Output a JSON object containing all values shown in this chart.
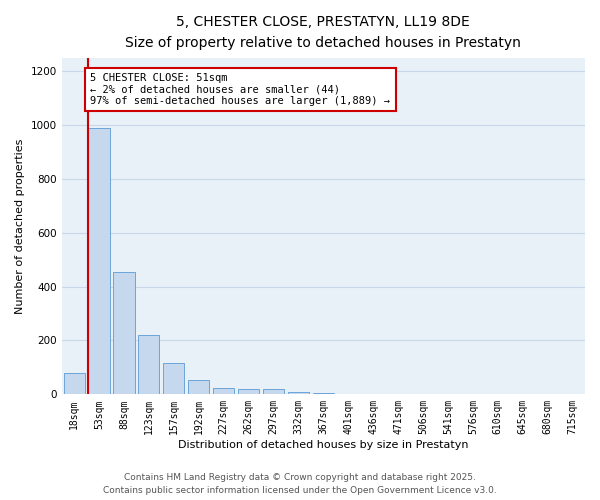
{
  "title_line1": "5, CHESTER CLOSE, PRESTATYN, LL19 8DE",
  "title_line2": "Size of property relative to detached houses in Prestatyn",
  "xlabel": "Distribution of detached houses by size in Prestatyn",
  "ylabel": "Number of detached properties",
  "bar_labels": [
    "18sqm",
    "53sqm",
    "88sqm",
    "123sqm",
    "157sqm",
    "192sqm",
    "227sqm",
    "262sqm",
    "297sqm",
    "332sqm",
    "367sqm",
    "401sqm",
    "436sqm",
    "471sqm",
    "506sqm",
    "541sqm",
    "576sqm",
    "610sqm",
    "645sqm",
    "680sqm",
    "715sqm"
  ],
  "bar_values": [
    80,
    990,
    455,
    220,
    115,
    55,
    22,
    18,
    18,
    8,
    5,
    0,
    0,
    0,
    0,
    0,
    0,
    0,
    0,
    0,
    0
  ],
  "bar_color": "#c5d8ed",
  "bar_edge_color": "#5b9bd5",
  "highlight_line_color": "#cc0000",
  "annotation_text": "5 CHESTER CLOSE: 51sqm\n← 2% of detached houses are smaller (44)\n97% of semi-detached houses are larger (1,889) →",
  "annotation_box_color": "#ffffff",
  "annotation_box_edge_color": "#cc0000",
  "ylim": [
    0,
    1250
  ],
  "yticks": [
    0,
    200,
    400,
    600,
    800,
    1000,
    1200
  ],
  "grid_color": "#c8d8e8",
  "background_color": "#e8f0f8",
  "footer_line1": "Contains HM Land Registry data © Crown copyright and database right 2025.",
  "footer_line2": "Contains public sector information licensed under the Open Government Licence v3.0.",
  "title_fontsize": 10,
  "subtitle_fontsize": 9,
  "axis_label_fontsize": 8,
  "tick_fontsize": 7,
  "annotation_fontsize": 7.5,
  "footer_fontsize": 6.5
}
